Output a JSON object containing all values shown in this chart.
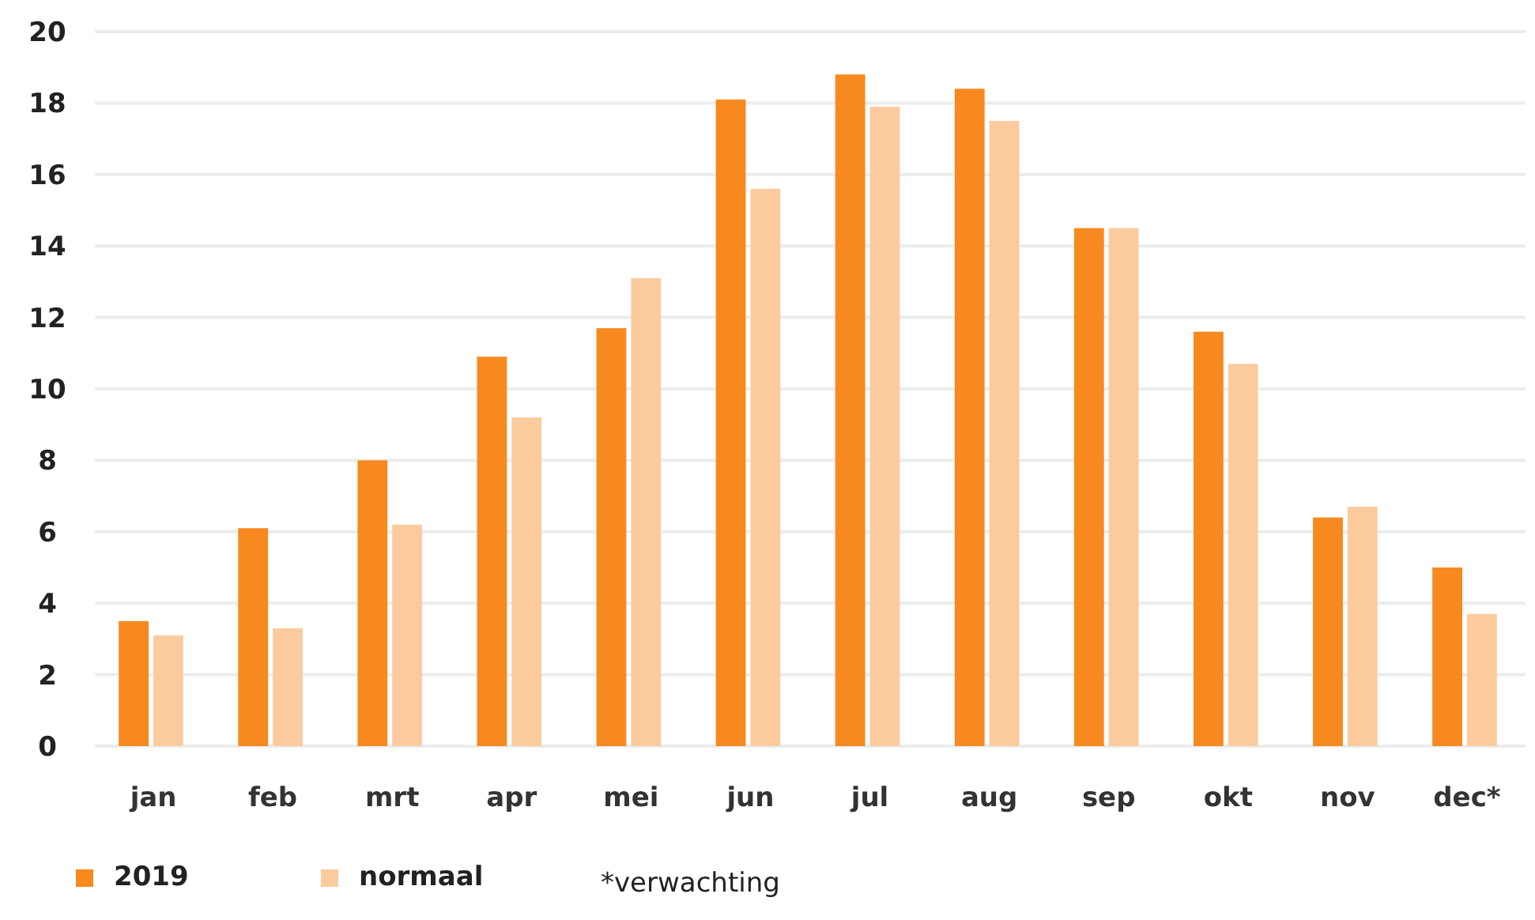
{
  "chart_data": {
    "type": "bar",
    "categories": [
      "jan",
      "feb",
      "mrt",
      "apr",
      "mei",
      "jun",
      "jul",
      "aug",
      "sep",
      "okt",
      "nov",
      "dec*"
    ],
    "series": [
      {
        "name": "2019",
        "color": "#f7891f",
        "values": [
          3.5,
          6.1,
          8.0,
          10.9,
          11.7,
          18.1,
          18.8,
          18.4,
          14.5,
          11.6,
          6.4,
          5.0
        ]
      },
      {
        "name": "normaal",
        "color": "#fbcb9e",
        "values": [
          3.1,
          3.3,
          6.2,
          9.2,
          13.1,
          15.6,
          17.9,
          17.5,
          14.5,
          10.7,
          6.7,
          3.7
        ]
      }
    ],
    "ylim": [
      0,
      20
    ],
    "yticks": [
      0,
      2,
      4,
      6,
      8,
      10,
      12,
      14,
      16,
      18,
      20
    ],
    "grid": "y",
    "legend": "bottom",
    "annotations": [
      "*verwachting"
    ]
  }
}
